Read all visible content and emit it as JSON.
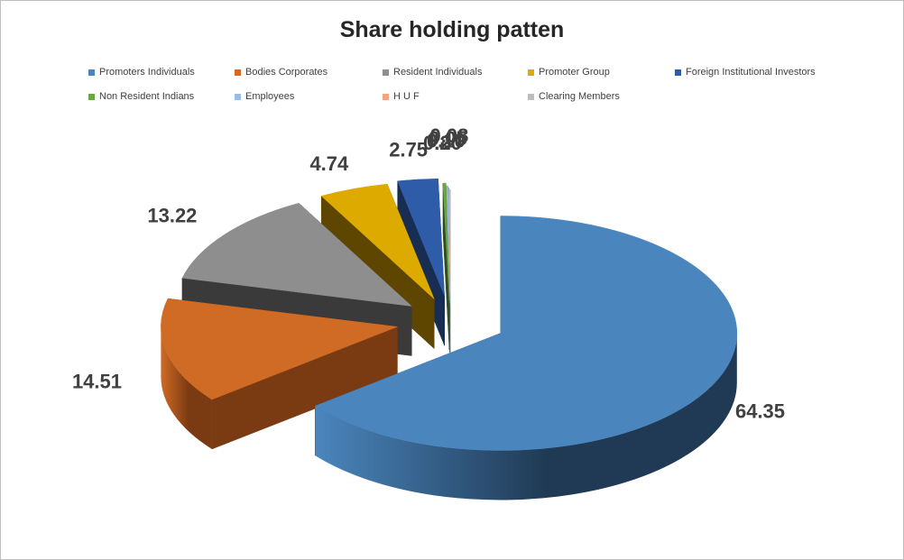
{
  "chart_data": {
    "type": "pie",
    "title": "Share holding patten",
    "three_d": true,
    "exploded": true,
    "legend_position": "top",
    "categories": [
      "Promoters Individuals",
      "Bodies Corporates",
      "Resident Individuals",
      "Promoter Group",
      "Foreign Institutional Investors",
      "Non Resident Indians",
      "Employees",
      "H U F",
      "Clearing Members"
    ],
    "values": [
      64.35,
      14.51,
      13.22,
      4.74,
      2.75,
      0.2,
      0.1,
      0.05,
      0.08
    ],
    "data_labels": [
      "64.35",
      "14.51",
      "13.22",
      "4.74",
      "2.75",
      "0.20",
      "0.10",
      "0.05",
      "0.08"
    ],
    "colors": [
      "#4a86bd",
      "#cf6b25",
      "#8e8e8e",
      "#ddaa00",
      "#2f5ca8",
      "#6aa644",
      "#9bbde3",
      "#f2a583",
      "#bdbdbd"
    ],
    "side_colors": [
      "#203a55",
      "#7a3a12",
      "#3a3a3a",
      "#5e4600",
      "#172d52",
      "#2f4d1d",
      "#4b6a8f",
      "#8e5b45",
      "#6b6b6b"
    ]
  }
}
